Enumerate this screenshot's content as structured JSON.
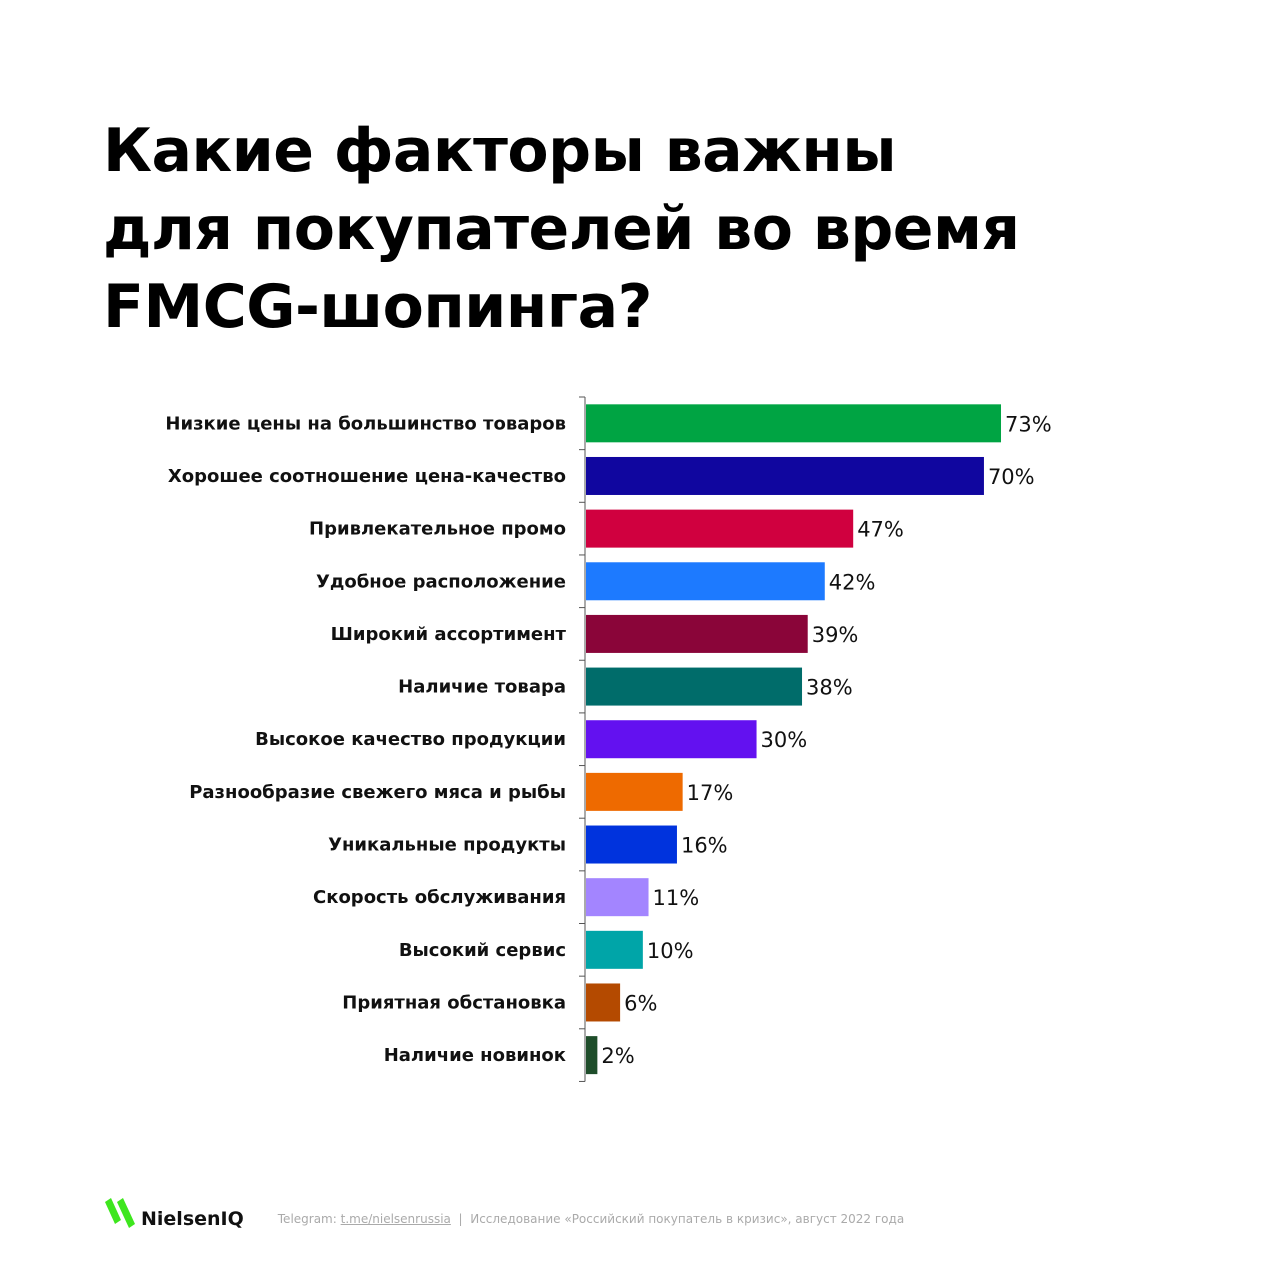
{
  "title_lines": [
    "Какие факторы важны",
    "для покупателей во время",
    "FMCG-шопинга?"
  ],
  "chart_data": {
    "type": "bar",
    "orientation": "horizontal",
    "title": "Какие факторы важны для покупателей во время FMCG-шопинга?",
    "xlabel": "",
    "ylabel": "",
    "xlim": [
      0,
      100
    ],
    "grid": false,
    "categories": [
      "Низкие цены на большинство товаров",
      "Хорошее соотношение цена-качество",
      "Привлекательное промо",
      "Удобное расположение",
      "Широкий ассортимент",
      "Наличие товара",
      "Высокое качество продукции",
      "Разнообразие свежего мяса и рыбы",
      "Уникальные продукты",
      "Скорость обслуживания",
      "Высокий сервис",
      "Приятная обстановка",
      "Наличие новинок"
    ],
    "values": [
      73,
      70,
      47,
      42,
      39,
      38,
      30,
      17,
      16,
      11,
      10,
      6,
      2
    ],
    "value_labels": [
      "73%",
      "70%",
      "47%",
      "42%",
      "39%",
      "38%",
      "30%",
      "17%",
      "16%",
      "11%",
      "10%",
      "6%",
      "2%"
    ],
    "colors": [
      "#00a443",
      "#10069f",
      "#d0003f",
      "#1d7aff",
      "#8a0539",
      "#006c6a",
      "#6311f0",
      "#ee6a00",
      "#0033dd",
      "#a385ff",
      "#00a5a8",
      "#b44a00",
      "#1e4d2a"
    ]
  },
  "footer": {
    "logo": "NielsenIQ",
    "logo_color": "#3ee61e",
    "telegram_label": "Telegram:",
    "telegram_link": "t.me/nielsenrussia",
    "separator": "|",
    "source": "Исследование «Российский покупатель в кризис», август 2022 года"
  }
}
